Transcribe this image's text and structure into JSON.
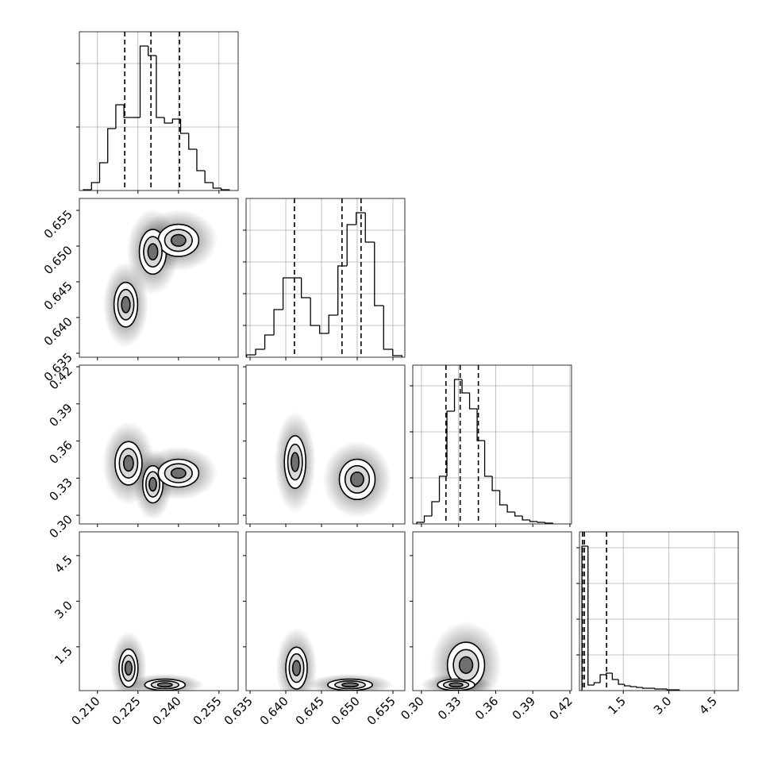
{
  "chart_data": {
    "type": "corner",
    "grid": true,
    "color": "#000000",
    "params": [
      {
        "lim": [
          0.2033,
          0.2621
        ],
        "ticks": [
          {
            "value": 0.21,
            "label": "0.210"
          },
          {
            "value": 0.225,
            "label": "0.225"
          },
          {
            "value": 0.24,
            "label": "0.240"
          },
          {
            "value": 0.255,
            "label": "0.255"
          }
        ]
      },
      {
        "lim": [
          0.63444,
          0.65667
        ],
        "ticks": [
          {
            "value": 0.635,
            "label": "0.635"
          },
          {
            "value": 0.64,
            "label": "0.640"
          },
          {
            "value": 0.645,
            "label": "0.645"
          },
          {
            "value": 0.65,
            "label": "0.650"
          },
          {
            "value": 0.655,
            "label": "0.655"
          }
        ]
      },
      {
        "lim": [
          0.293,
          0.4213
        ],
        "ticks": [
          {
            "value": 0.3,
            "label": "0.30"
          },
          0.33,
          0.36,
          0.39,
          0.42
        ]
      },
      {
        "lim": [
          0.06,
          5.28
        ],
        "ticks": [
          1.5,
          {
            "value": 3.0,
            "label": "3.0"
          },
          4.5
        ]
      }
    ],
    "histograms": [
      {
        "bins": [
          0.2048,
          0.2078,
          0.2108,
          0.2138,
          0.2168,
          0.2198,
          0.2228,
          0.2258,
          0.2288,
          0.2318,
          0.2348,
          0.2378,
          0.2408,
          0.2438,
          0.2468,
          0.2498,
          0.2528,
          0.2558,
          0.2588
        ],
        "counts": [
          1,
          10,
          35,
          78,
          108,
          92,
          92,
          182,
          170,
          92,
          85,
          90,
          72,
          52,
          25,
          10,
          3,
          1
        ],
        "ylim": [
          0,
          200
        ],
        "yticks": [
          80,
          160
        ],
        "quantiles": [
          0.2201,
          0.2298,
          0.2404
        ]
      },
      {
        "bins": [
          0.6345,
          0.63578,
          0.63706,
          0.63834,
          0.63962,
          0.6409,
          0.64218,
          0.64346,
          0.64474,
          0.64602,
          0.6473,
          0.64858,
          0.64986,
          0.65114,
          0.65242,
          0.6537,
          0.65498,
          0.65626
        ],
        "counts": [
          3,
          10,
          28,
          60,
          100,
          100,
          75,
          40,
          30,
          53,
          115,
          167,
          182,
          145,
          65,
          10,
          2
        ],
        "ylim": [
          0,
          200
        ],
        "yticks": [
          40,
          80,
          120,
          160
        ],
        "quantiles": [
          0.64121,
          0.64787,
          0.65054
        ]
      },
      {
        "bins": [
          0.2962,
          0.3023,
          0.3084,
          0.3145,
          0.3206,
          0.3267,
          0.3328,
          0.3389,
          0.345,
          0.3511,
          0.3572,
          0.3633,
          0.3694,
          0.3755,
          0.3816,
          0.3877,
          0.3938,
          0.3999,
          0.406
        ],
        "counts": [
          2,
          10,
          28,
          60,
          142,
          182,
          165,
          145,
          105,
          60,
          42,
          24,
          15,
          10,
          5,
          3,
          2,
          1
        ],
        "ylim": [
          0,
          200
        ],
        "yticks": [
          58,
          116,
          174
        ],
        "quantiles": [
          0.3198,
          0.3313,
          0.346
        ]
      },
      {
        "bins": [
          0.14,
          0.34,
          0.54,
          0.74,
          0.94,
          1.14,
          1.34,
          1.54,
          1.74,
          1.94,
          2.14,
          2.34,
          2.54,
          2.74,
          2.94,
          3.14,
          3.34
        ],
        "counts": [
          182,
          7,
          10,
          20,
          22,
          14,
          8,
          6,
          5,
          4,
          3,
          3,
          2,
          2,
          1,
          1
        ],
        "ylim": [
          0,
          200
        ],
        "yticks": [
          45,
          90,
          135,
          180
        ],
        "quantiles": [
          0.16,
          0.22,
          0.95
        ]
      }
    ],
    "pairs": [
      {
        "modes": [
          {
            "x": 0.2305,
            "y": 0.6492,
            "sx": 0.004,
            "sy": 0.0025
          },
          {
            "x": 0.24,
            "y": 0.6508,
            "sx": 0.006,
            "sy": 0.0018
          },
          {
            "x": 0.2205,
            "y": 0.6418,
            "sx": 0.0035,
            "sy": 0.0025
          }
        ]
      },
      {
        "modes": [
          {
            "x": 0.2215,
            "y": 0.342,
            "sx": 0.004,
            "sy": 0.014
          },
          {
            "x": 0.2305,
            "y": 0.325,
            "sx": 0.003,
            "sy": 0.012
          },
          {
            "x": 0.24,
            "y": 0.334,
            "sx": 0.006,
            "sy": 0.009
          }
        ]
      },
      {
        "modes": [
          {
            "x": 0.6413,
            "y": 0.343,
            "sx": 0.0012,
            "sy": 0.017
          },
          {
            "x": 0.65,
            "y": 0.329,
            "sx": 0.002,
            "sy": 0.013
          }
        ]
      },
      {
        "modes": [
          {
            "x": 0.2215,
            "y": 0.8,
            "sx": 0.0028,
            "sy": 0.5
          },
          {
            "x": 0.235,
            "y": 0.25,
            "sx": 0.006,
            "sy": 0.15
          }
        ]
      },
      {
        "modes": [
          {
            "x": 0.6415,
            "y": 0.8,
            "sx": 0.0012,
            "sy": 0.55
          },
          {
            "x": 0.649,
            "y": 0.25,
            "sx": 0.0025,
            "sy": 0.15
          }
        ]
      },
      {
        "modes": [
          {
            "x": 0.336,
            "y": 0.9,
            "sx": 0.012,
            "sy": 0.6
          },
          {
            "x": 0.328,
            "y": 0.25,
            "sx": 0.012,
            "sy": 0.15
          }
        ]
      }
    ]
  }
}
